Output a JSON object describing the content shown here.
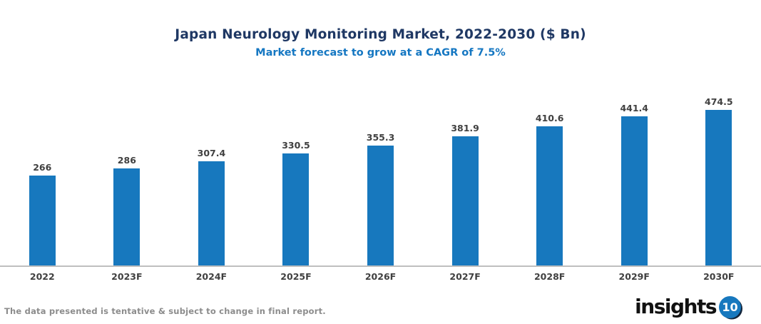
{
  "header": {
    "title": "Japan Neurology Monitoring Market, 2022-2030 ($ Bn)",
    "subtitle": "Market forecast to grow at a CAGR of 7.5%"
  },
  "chart_data": {
    "type": "bar",
    "categories": [
      "2022",
      "2023F",
      "2024F",
      "2025F",
      "2026F",
      "2027F",
      "2028F",
      "2029F",
      "2030F"
    ],
    "values": [
      266,
      286,
      307.4,
      330.5,
      355.3,
      381.9,
      410.6,
      441.4,
      474.5
    ],
    "title": "Japan Neurology Monitoring Market, 2022-2030 ($ Bn)",
    "subtitle": "Market forecast to grow at a CAGR of 7.5%",
    "xlabel": "",
    "ylabel": "",
    "ylim": [
      0,
      500
    ],
    "grid": false,
    "legend": false,
    "data_labels": true,
    "bar_color": "#1778BE",
    "value_label_color": "#404040",
    "axis_label_color": "#404040",
    "axis_line_color": "#BFBFBF",
    "title_color": "#1F3864",
    "subtitle_color": "#1577C2"
  },
  "footer": {
    "disclaimer": "The data presented is tentative & subject to change in final report.",
    "logo": {
      "text": "insights",
      "badge": "10",
      "badge_color": "#1778BE"
    }
  }
}
